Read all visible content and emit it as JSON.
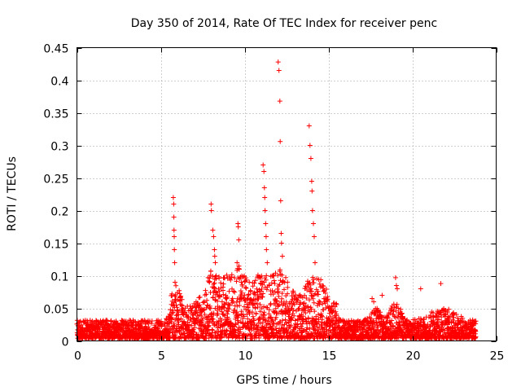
{
  "chart_data": {
    "type": "scatter",
    "title": "Day 350 of 2014, Rate Of TEC Index for receiver penc",
    "xlabel": "GPS time / hours",
    "ylabel": "ROTI / TECUs",
    "xlim": [
      0,
      25
    ],
    "ylim": [
      0,
      0.45
    ],
    "xticks": [
      "0",
      "5",
      "10",
      "15",
      "20",
      "25"
    ],
    "yticks": [
      "0",
      "0.05",
      "0.1",
      "0.15",
      "0.2",
      "0.25",
      "0.3",
      "0.35",
      "0.4",
      "0.45"
    ],
    "grid": true,
    "marker": "plus",
    "color": "#ff0000",
    "series": [
      {
        "x": [
          5.75,
          5.77,
          5.78,
          5.79,
          5.8,
          5.81,
          5.83,
          5.85,
          8.0,
          8.02,
          8.1,
          8.15,
          8.2,
          8.22,
          8.25,
          8.3,
          9.6,
          9.62,
          9.65,
          9.55,
          11.1,
          11.15,
          11.18,
          11.2,
          11.22,
          11.25,
          11.28,
          11.3,
          11.35,
          12.0,
          12.05,
          12.1,
          12.12,
          12.15,
          12.18,
          12.2,
          12.25,
          13.85,
          13.9,
          13.95,
          14.0,
          14.02,
          14.05,
          14.1,
          14.15,
          14.2,
          17.6,
          17.7,
          18.2,
          19.0,
          19.05,
          19.1,
          20.5,
          21.7
        ],
        "y": [
          0.22,
          0.21,
          0.19,
          0.17,
          0.16,
          0.14,
          0.12,
          0.09,
          0.21,
          0.2,
          0.17,
          0.16,
          0.14,
          0.13,
          0.12,
          0.1,
          0.18,
          0.175,
          0.155,
          0.12,
          0.27,
          0.26,
          0.235,
          0.22,
          0.2,
          0.18,
          0.16,
          0.14,
          0.12,
          0.428,
          0.415,
          0.368,
          0.306,
          0.215,
          0.165,
          0.15,
          0.13,
          0.33,
          0.3,
          0.28,
          0.245,
          0.23,
          0.2,
          0.18,
          0.16,
          0.12,
          0.065,
          0.06,
          0.07,
          0.097,
          0.085,
          0.08,
          0.08,
          0.088
        ]
      }
    ],
    "background_band": {
      "description": "dense cloud of points between about 0.005 and 0.05 spanning 0 to 23.8 hours, rising to about 0.1 near 8-15 hours"
    }
  }
}
